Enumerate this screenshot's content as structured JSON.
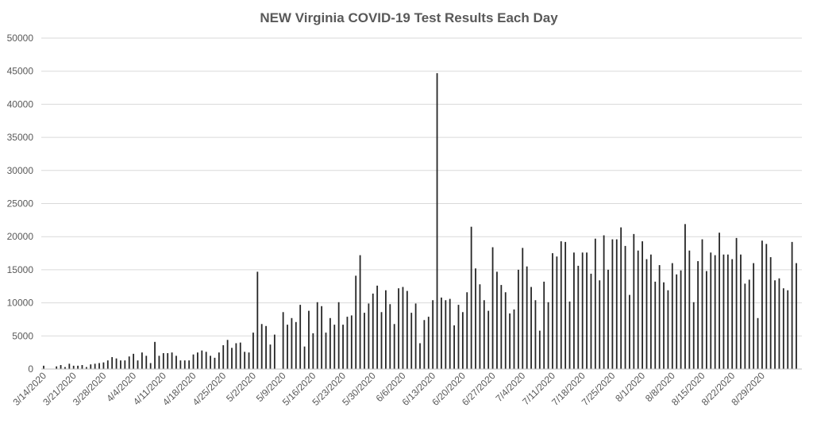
{
  "chart_data": {
    "type": "bar",
    "title": "NEW Virginia COVID-19 Test Results Each Day",
    "xlabel": "",
    "ylabel": "",
    "ylim": [
      0,
      50000
    ],
    "yticks": [
      0,
      5000,
      10000,
      15000,
      20000,
      25000,
      30000,
      35000,
      40000,
      45000,
      50000
    ],
    "grid": true,
    "legend": "none",
    "bar_color": "#262626",
    "start_date": "3/14/2020",
    "tick_labels": [
      "3/14/2020",
      "3/21/2020",
      "3/28/2020",
      "4/4/2020",
      "4/11/2020",
      "4/18/2020",
      "4/25/2020",
      "5/2/2020",
      "5/9/2020",
      "5/16/2020",
      "5/23/2020",
      "5/30/2020",
      "6/6/2020",
      "6/13/2020",
      "6/20/2020",
      "6/27/2020",
      "7/4/2020",
      "7/11/2020",
      "7/18/2020",
      "7/25/2020",
      "8/1/2020",
      "8/8/2020",
      "8/15/2020",
      "8/22/2020",
      "8/29/2020"
    ],
    "values": [
      500,
      0,
      0,
      400,
      600,
      300,
      800,
      500,
      500,
      600,
      300,
      700,
      800,
      900,
      1000,
      1300,
      1800,
      1600,
      1300,
      1300,
      1900,
      2300,
      1300,
      2500,
      2000,
      900,
      4100,
      2000,
      2400,
      2400,
      2500,
      2000,
      1300,
      1300,
      1300,
      2200,
      2500,
      2800,
      2600,
      2000,
      1700,
      2500,
      3600,
      4400,
      3200,
      3900,
      4000,
      2600,
      2500,
      5500,
      14700,
      6800,
      6500,
      3700,
      5200,
      0,
      8600,
      6700,
      7700,
      7100,
      9700,
      3400,
      8800,
      5400,
      10100,
      9500,
      5500,
      7700,
      6700,
      10100,
      6700,
      7900,
      8100,
      14100,
      17200,
      8500,
      9900,
      11400,
      12600,
      8600,
      11900,
      9800,
      6800,
      12200,
      12400,
      11800,
      8500,
      9900,
      3900,
      7400,
      7900,
      10400,
      44700,
      10800,
      10400,
      10600,
      6600,
      9700,
      8600,
      11600,
      21500,
      15200,
      12800,
      10400,
      8800,
      18400,
      14700,
      12700,
      11600,
      8400,
      9000,
      15000,
      18300,
      15500,
      12400,
      10400,
      5800,
      13200,
      10100,
      17500,
      17000,
      19300,
      19200,
      10200,
      17600,
      15600,
      17600,
      17600,
      14400,
      19700,
      13400,
      20200,
      15000,
      19600,
      19600,
      21400,
      18600,
      11200,
      20400,
      17900,
      19300,
      16600,
      17300,
      13200,
      15700,
      13100,
      11900,
      16000,
      14300,
      14900,
      21900,
      17900,
      10100,
      16300,
      19600,
      14800,
      17600,
      17200,
      20600,
      17300,
      17300,
      16600,
      19800,
      17300,
      12900,
      13500,
      16000,
      7700,
      19400,
      18900,
      16900,
      13400,
      13700,
      12200,
      11900,
      19200,
      16000
    ]
  }
}
